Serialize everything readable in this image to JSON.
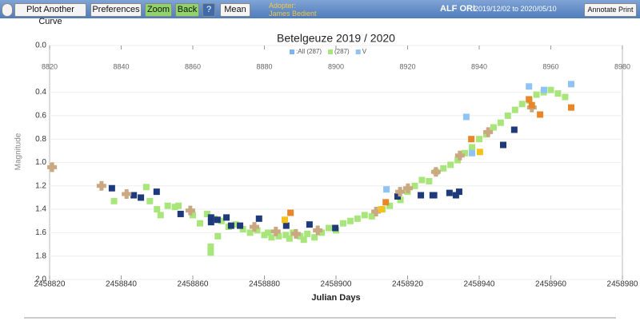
{
  "toolbar": {
    "buttons": [
      "Plot Another Curve",
      "Preferences",
      "Zoom",
      "Back",
      "?",
      "Mean"
    ],
    "adopter_label": "Adopter:",
    "adopter": "James Bedient",
    "star": "ALF ORI",
    "date_range": "2019/12/02 to 2020/05/10",
    "annotate": "Annotate Print"
  },
  "chart_data": {
    "type": "scatter",
    "title": "Betelgeuze 2019 / 2020",
    "x_label": "Julian Days",
    "y_label": "Magnitude",
    "legend": [
      {
        "label": ":All (287)",
        "color": "#7fb3f0"
      },
      {
        "label": "(287)",
        "color": "#a8e67c"
      },
      {
        "label": "V",
        "color": "#8fc3f3"
      }
    ],
    "xlim": [
      2458820,
      2458980
    ],
    "xticks": [
      2458820,
      2458840,
      2458860,
      2458880,
      2458900,
      2458920,
      2458940,
      2458960,
      2458980
    ],
    "x2lim": [
      8820,
      8980
    ],
    "x2ticks": [
      8820,
      8840,
      8860,
      8880,
      8900,
      8920,
      8940,
      8960,
      8980
    ],
    "ylim": [
      0,
      2
    ],
    "y_reversed": true,
    "yticks": [
      {
        "value": 0,
        "label": "0.0"
      },
      0.4,
      0.6,
      0.8,
      {
        "value": 1,
        "label": "1.0"
      },
      1.2,
      1.4,
      1.6,
      1.8,
      {
        "value": 2,
        "label": "2.0"
      }
    ],
    "grid": true,
    "series": [
      {
        "color": "#a8e67c",
        "marker": "square",
        "x": [
          2458838,
          2458847,
          2458848,
          2458850,
          2458851,
          2458853,
          2458855,
          2458856,
          2458860,
          2458862,
          2458864,
          2458866,
          2458867,
          2458868,
          2458870,
          2458872,
          2458874,
          2458876,
          2458878,
          2458880,
          2458881,
          2458882,
          2458884,
          2458886,
          2458887,
          2458888,
          2458890,
          2458891,
          2458892,
          2458894,
          2458896,
          2458898,
          2458900,
          2458902,
          2458904,
          2458906,
          2458908,
          2458910,
          2458913,
          2458915,
          2458918,
          2458920,
          2458922,
          2458924,
          2458926,
          2458928,
          2458930,
          2458932,
          2458934,
          2458936,
          2458938,
          2458940,
          2458942,
          2458944,
          2458946,
          2458948,
          2458950,
          2458952,
          2458954,
          2458956,
          2458958,
          2458960,
          2458962,
          2458964,
          2458865,
          2458865
        ],
        "values": [
          1.33,
          1.21,
          1.33,
          1.4,
          1.45,
          1.37,
          1.38,
          1.37,
          1.45,
          1.52,
          1.44,
          1.48,
          1.63,
          1.5,
          1.55,
          1.53,
          1.57,
          1.6,
          1.58,
          1.62,
          1.6,
          1.64,
          1.63,
          1.62,
          1.65,
          1.6,
          1.63,
          1.66,
          1.61,
          1.64,
          1.6,
          1.56,
          1.58,
          1.52,
          1.5,
          1.48,
          1.45,
          1.46,
          1.4,
          1.37,
          1.32,
          1.25,
          1.2,
          1.15,
          1.16,
          1.08,
          1.05,
          1.02,
          0.98,
          0.92,
          0.87,
          0.8,
          0.76,
          0.7,
          0.66,
          0.6,
          0.55,
          0.5,
          0.47,
          0.42,
          0.4,
          0.38,
          0.41,
          0.44,
          1.77,
          1.72
        ]
      },
      {
        "color": "#1f3a7a",
        "marker": "square",
        "x": [
          2458837.4,
          2458843.5,
          2458845.5,
          2458849.9,
          2458856.6,
          2458865.1,
          2458865.1,
          2458866.9,
          2458869.4,
          2458870.7,
          2458873.2,
          2458878.5,
          2458886.1,
          2458892.6,
          2458899.8,
          2458917.2,
          2458923.7,
          2458927,
          2458927.4,
          2458931.7,
          2458933.5,
          2458934.4,
          2458946.7,
          2458949.8
        ],
        "values": [
          1.22,
          1.28,
          1.3,
          1.25,
          1.44,
          1.47,
          1.51,
          1.49,
          1.47,
          1.54,
          1.54,
          1.48,
          1.54,
          1.53,
          1.56,
          1.29,
          1.28,
          1.28,
          1.28,
          1.26,
          1.28,
          1.25,
          0.85,
          0.72
        ]
      },
      {
        "color": "#c9a882",
        "marker": "cross",
        "x": [
          2458820.7,
          2458834.5,
          2458841.5,
          2458859.3,
          2458877.2,
          2458883.2,
          2458888.8,
          2458894.9,
          2458911.2,
          2458917.9,
          2458920.1,
          2458927.9,
          2458934.6,
          2458942.5,
          2458954.7
        ],
        "values": [
          1.04,
          1.2,
          1.27,
          1.41,
          1.55,
          1.59,
          1.61,
          1.58,
          1.42,
          1.25,
          1.22,
          1.08,
          0.94,
          0.74,
          0.53
        ]
      },
      {
        "color": "#8fc3f3",
        "marker": "square",
        "x": [
          2458936.4,
          2458914.1,
          2458953.9,
          2458958.1,
          2458965.7,
          2458938
        ],
        "values": [
          0.61,
          1.23,
          0.35,
          0.38,
          0.33,
          0.92
        ]
      },
      {
        "color": "#e8862a",
        "marker": "square",
        "x": [
          2458887.3,
          2458913.9,
          2458937.8,
          2458953.9,
          2458954.7,
          2458957,
          2458965.7
        ],
        "values": [
          1.43,
          1.34,
          0.8,
          0.46,
          0.51,
          0.59,
          0.53
        ]
      },
      {
        "color": "#f5c21b",
        "marker": "square",
        "x": [
          2458885.7,
          2458912.7,
          2458940.2
        ],
        "values": [
          1.49,
          1.4,
          0.91
        ]
      }
    ]
  }
}
